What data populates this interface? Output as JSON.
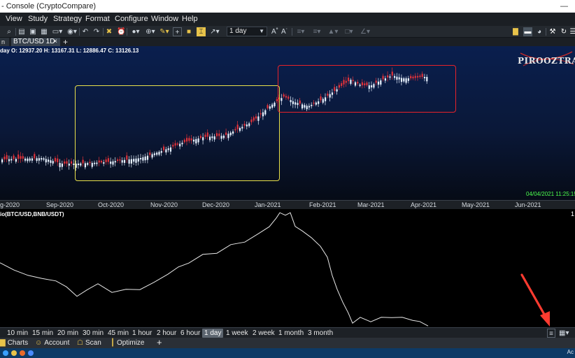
{
  "window": {
    "title": "- Console (CryptoCompare)",
    "minimize_glyph": "—"
  },
  "menu": {
    "items": [
      "View",
      "Study",
      "Strategy",
      "Format",
      "Configure",
      "Window",
      "Help"
    ]
  },
  "toolbar": {
    "timeframe_value": "1 day",
    "icons": [
      "zoom-icon",
      "new-icon",
      "print-icon",
      "open-icon",
      "camera-icon",
      "undo-icon",
      "redo-icon",
      "crosshair-icon",
      "alarm-icon",
      "cursor-icon",
      "zoom-in-icon",
      "draw-icon",
      "add-icon",
      "bar-style-icon",
      "template-icon",
      "link-icon",
      "font-increase-icon",
      "font-decrease-icon",
      "line-style-icon",
      "fill-icon",
      "color-icon",
      "bar-color-icon",
      "chart-type-icon",
      "chat-icon",
      "settings-icon",
      "refresh-icon",
      "menu-icon"
    ]
  },
  "tabs": {
    "cut_label": "n",
    "active_label": "BTC/USD 1D",
    "close_glyph": "×",
    "add_glyph": "+"
  },
  "price_panel": {
    "ohlc_text": "day   O: 12937.20  H: 13167.31  L: 12886.47  C: 13126.13",
    "watermark": "PIROOZTRADE",
    "timestamp": "04/04/2021 11:25:15",
    "colors": {
      "up": "#e8f2ff",
      "down": "#e0323a",
      "highlight_yellow": "#e8e04a",
      "highlight_red": "#e8222a"
    }
  },
  "date_axis": {
    "labels": [
      "g-2020",
      "Sep-2020",
      "Oct-2020",
      "Nov-2020",
      "Dec-2020",
      "Jan-2021",
      "Feb-2021",
      "Mar-2021",
      "Apr-2021",
      "May-2021",
      "Jun-2021"
    ]
  },
  "indicator": {
    "title": "io(BTC/USD,BNB/USDT)",
    "right_mark": "1"
  },
  "timeframes": {
    "items": [
      "10 min",
      "15 min",
      "20 min",
      "30 min",
      "45 min",
      "1 hour",
      "2 hour",
      "6 hour",
      "1 day",
      "1 week",
      "2 week",
      "1 month",
      "3 month"
    ],
    "active": "1 day"
  },
  "bottom_bar": {
    "items": [
      {
        "icon": "chart-icon",
        "label": "Charts"
      },
      {
        "icon": "account-icon",
        "label": "Account"
      },
      {
        "icon": "scan-icon",
        "label": "Scan"
      },
      {
        "icon": "optimize-icon",
        "label": "Optimize"
      }
    ],
    "add_glyph": "+"
  },
  "taskbar": {
    "tray_text": "Ac"
  },
  "annotation": {
    "arrow_color": "#ff3b30"
  }
}
